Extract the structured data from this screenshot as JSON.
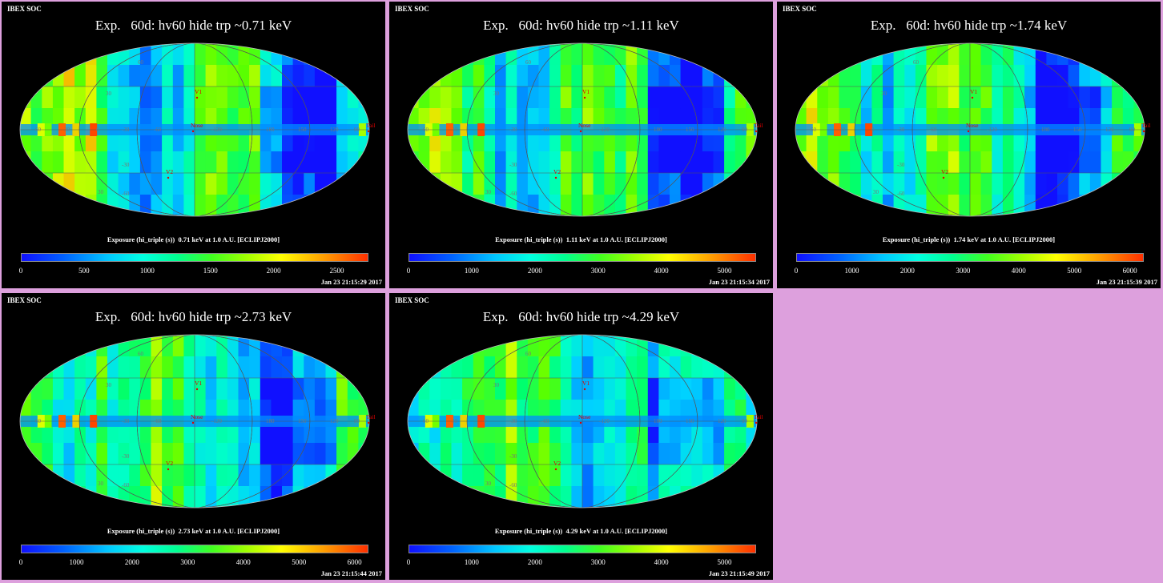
{
  "panels": [
    {
      "header": "IBEX SOC",
      "title": "Exp.   60d: hv60 hide trp ~0.71 keV",
      "caption": "Exposure (hi_triple (s))  0.71 keV at 1.0 A.U. [ECLIPJ2000]",
      "ticks": [
        "0",
        "500",
        "1000",
        "1500",
        "2000",
        "2500"
      ],
      "scale_max": 2750,
      "timestamp": "Jan 23 21:15:29 2017"
    },
    {
      "header": "IBEX SOC",
      "title": "Exp.   60d: hv60 hide trp ~1.11 keV",
      "caption": "Exposure (hi_triple (s))  1.11 keV at 1.0 A.U. [ECLIPJ2000]",
      "ticks": [
        "0",
        "1000",
        "2000",
        "3000",
        "4000",
        "5000"
      ],
      "scale_max": 5500,
      "timestamp": "Jan 23 21:15:34 2017"
    },
    {
      "header": "IBEX SOC",
      "title": "Exp.   60d: hv60 hide trp ~1.74 keV",
      "caption": "Exposure (hi_triple (s))  1.74 keV at 1.0 A.U. [ECLIPJ2000]",
      "ticks": [
        "0",
        "1000",
        "2000",
        "3000",
        "4000",
        "5000",
        "6000"
      ],
      "scale_max": 6250,
      "timestamp": "Jan 23 21:15:39 2017"
    },
    {
      "header": "IBEX SOC",
      "title": "Exp.   60d: hv60 hide trp ~2.73 keV",
      "caption": "Exposure (hi_triple (s))  2.73 keV at 1.0 A.U. [ECLIPJ2000]",
      "ticks": [
        "0",
        "1000",
        "2000",
        "3000",
        "4000",
        "5000",
        "6000"
      ],
      "scale_max": 6250,
      "timestamp": "Jan 23 21:15:44 2017"
    },
    {
      "header": "IBEX SOC",
      "title": "Exp.   60d: hv60 hide trp ~4.29 keV",
      "caption": "Exposure (hi_triple (s))  4.29 keV at 1.0 A.U. [ECLIPJ2000]",
      "ticks": [
        "0",
        "1000",
        "2000",
        "3000",
        "4000",
        "5000"
      ],
      "scale_max": 5500,
      "timestamp": "Jan 23 21:15:49 2017"
    }
  ],
  "map_labels": {
    "lat_labels": [
      "60",
      "30",
      "-30",
      "-60",
      "30",
      "-30",
      "60"
    ],
    "lon_labels": [
      "60",
      "30",
      "0",
      "-30",
      "-60",
      "-120",
      "180",
      "150",
      "120",
      "90"
    ],
    "markers": [
      "V1",
      "V2",
      "Nose",
      "Tail"
    ]
  },
  "colors": {
    "background": "#dda0dd",
    "panel": "#000000",
    "marker": "#e00000"
  }
}
